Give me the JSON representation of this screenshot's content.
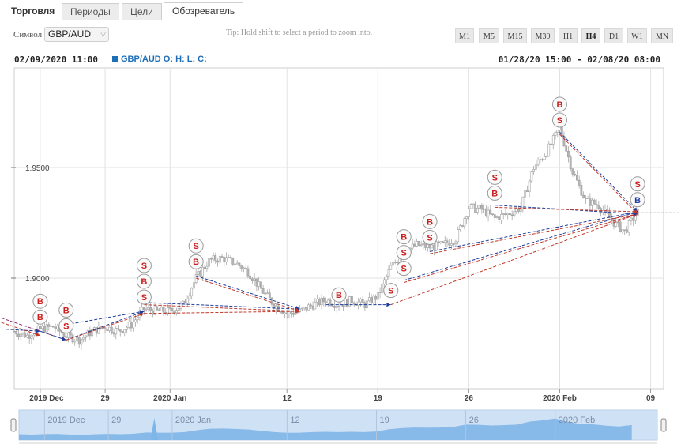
{
  "tabs": [
    {
      "label": "Торговля"
    },
    {
      "label": "Периоды"
    },
    {
      "label": "Цели"
    },
    {
      "label": "Обозреватель",
      "active": true
    }
  ],
  "toolbar": {
    "symbol_label": "Символ",
    "symbol_value": "GBP/AUD",
    "tip": "Tip: Hold shift to select a period to zoom into.",
    "timeframes": [
      "M1",
      "M5",
      "M15",
      "M30",
      "H1",
      "H4",
      "D1",
      "W1",
      "MN"
    ],
    "active_timeframe": "H4"
  },
  "info": {
    "datetime": "02/09/2020 11:00",
    "symbol": "GBP/AUD",
    "ohlc": "O: H: L: C:",
    "range": "01/28/20 15:00 - 02/08/20 08:00"
  },
  "chart_data": {
    "type": "candlestick",
    "y_ticks": [
      "1.9500",
      "1.9000"
    ],
    "y_tick_values": [
      1.95,
      1.9
    ],
    "ylim": [
      1.85,
      1.995
    ],
    "x_tick_labels": [
      "2019 Dec",
      "29",
      "2020 Jan",
      "12",
      "19",
      "26",
      "2020 Feb",
      "09"
    ],
    "x_tick_days": [
      -5,
      0,
      5,
      14,
      21,
      28,
      35,
      42
    ],
    "x_range_days": [
      -7,
      43
    ],
    "x_axis_note": "days relative to 2019-12-29",
    "grid": true,
    "current_price": 1.9295,
    "price_path": [
      [
        -7,
        1.876
      ],
      [
        -6,
        1.874
      ],
      [
        -5,
        1.877
      ],
      [
        -4,
        1.878
      ],
      [
        -3,
        1.874
      ],
      [
        -2,
        1.872
      ],
      [
        -1,
        1.876
      ],
      [
        0,
        1.878
      ],
      [
        1,
        1.876
      ],
      [
        2,
        1.879
      ],
      [
        3,
        1.886
      ],
      [
        4,
        1.885
      ],
      [
        5,
        1.885
      ],
      [
        6,
        1.888
      ],
      [
        7,
        1.9
      ],
      [
        8,
        1.908
      ],
      [
        9,
        1.909
      ],
      [
        10,
        1.907
      ],
      [
        11,
        1.903
      ],
      [
        12,
        1.895
      ],
      [
        13,
        1.888
      ],
      [
        14,
        1.884
      ],
      [
        15,
        1.885
      ],
      [
        16,
        1.888
      ],
      [
        17,
        1.89
      ],
      [
        18,
        1.888
      ],
      [
        19,
        1.89
      ],
      [
        20,
        1.888
      ],
      [
        21,
        1.892
      ],
      [
        22,
        1.905
      ],
      [
        23,
        1.912
      ],
      [
        24,
        1.915
      ],
      [
        25,
        1.914
      ],
      [
        26,
        1.915
      ],
      [
        27,
        1.918
      ],
      [
        28,
        1.932
      ],
      [
        29,
        1.931
      ],
      [
        30,
        1.927
      ],
      [
        31,
        1.929
      ],
      [
        32,
        1.932
      ],
      [
        33,
        1.95
      ],
      [
        34,
        1.957
      ],
      [
        35,
        1.968
      ],
      [
        36,
        1.948
      ],
      [
        37,
        1.935
      ],
      [
        38,
        1.933
      ],
      [
        39,
        1.926
      ],
      [
        40,
        1.921
      ],
      [
        41,
        1.93
      ]
    ],
    "signals": [
      {
        "day": -5,
        "price": 1.876,
        "marks": [
          "B",
          "B"
        ]
      },
      {
        "day": -3,
        "price": 1.872,
        "marks": [
          "B",
          "S"
        ]
      },
      {
        "day": 3,
        "price": 1.885,
        "marks": [
          "S",
          "B",
          "S"
        ]
      },
      {
        "day": 7,
        "price": 1.901,
        "marks": [
          "S",
          "B"
        ]
      },
      {
        "day": 18,
        "price": 1.886,
        "marks": [
          "B"
        ]
      },
      {
        "day": 22,
        "price": 1.888,
        "marks": [
          "S"
        ]
      },
      {
        "day": 23,
        "price": 1.898,
        "marks": [
          "B",
          "S",
          "S"
        ]
      },
      {
        "day": 25,
        "price": 1.912,
        "marks": [
          "B",
          "S"
        ]
      },
      {
        "day": 30,
        "price": 1.932,
        "marks": [
          "S",
          "B"
        ]
      },
      {
        "day": 35,
        "price": 1.965,
        "marks": [
          "B",
          "S"
        ]
      },
      {
        "day": 41,
        "price": 1.929,
        "marks": [
          "S",
          "B"
        ]
      }
    ],
    "trade_lines": [
      {
        "from": [
          -8,
          1.877
        ],
        "to": [
          -5,
          1.876
        ],
        "color": "#1f3d9c"
      },
      {
        "from": [
          -8,
          1.88
        ],
        "to": [
          -5,
          1.874
        ],
        "color": "#c0392b"
      },
      {
        "from": [
          -8,
          1.882
        ],
        "to": [
          -3,
          1.872
        ],
        "color": "#8e2a6a"
      },
      {
        "from": [
          -5,
          1.876
        ],
        "to": [
          -3,
          1.872
        ],
        "color": "#1f3d9c"
      },
      {
        "from": [
          -3,
          1.872
        ],
        "to": [
          3,
          1.885
        ],
        "color": "#1f3d9c"
      },
      {
        "from": [
          -3,
          1.872
        ],
        "to": [
          3,
          1.884
        ],
        "color": "#c0392b"
      },
      {
        "from": [
          -3,
          1.879
        ],
        "to": [
          3,
          1.885
        ],
        "color": "#1f3d9c"
      },
      {
        "from": [
          3,
          1.889
        ],
        "to": [
          15,
          1.886
        ],
        "color": "#1f3d9c"
      },
      {
        "from": [
          3,
          1.888
        ],
        "to": [
          15,
          1.885
        ],
        "color": "#c0392b"
      },
      {
        "from": [
          3,
          1.884
        ],
        "to": [
          15,
          1.885
        ],
        "color": "#c0392b"
      },
      {
        "from": [
          7,
          1.901
        ],
        "to": [
          15,
          1.886
        ],
        "color": "#1f3d9c"
      },
      {
        "from": [
          7,
          1.9
        ],
        "to": [
          15,
          1.885
        ],
        "color": "#c0392b"
      },
      {
        "from": [
          17,
          1.888
        ],
        "to": [
          22,
          1.888
        ],
        "color": "#1f3d9c"
      },
      {
        "from": [
          22,
          1.888
        ],
        "to": [
          41,
          1.929
        ],
        "color": "#c0392b"
      },
      {
        "from": [
          23,
          1.899
        ],
        "to": [
          41,
          1.93
        ],
        "color": "#1f3d9c"
      },
      {
        "from": [
          23,
          1.898
        ],
        "to": [
          41,
          1.929
        ],
        "color": "#c0392b"
      },
      {
        "from": [
          25,
          1.912
        ],
        "to": [
          41,
          1.93
        ],
        "color": "#1f3d9c"
      },
      {
        "from": [
          25,
          1.911
        ],
        "to": [
          41,
          1.929
        ],
        "color": "#c0392b"
      },
      {
        "from": [
          30,
          1.933
        ],
        "to": [
          41,
          1.929
        ],
        "color": "#1f3d9c"
      },
      {
        "from": [
          30,
          1.932
        ],
        "to": [
          41,
          1.93
        ],
        "color": "#c0392b"
      },
      {
        "from": [
          35,
          1.966
        ],
        "to": [
          41,
          1.93
        ],
        "color": "#1f3d9c"
      },
      {
        "from": [
          35,
          1.965
        ],
        "to": [
          41,
          1.929
        ],
        "color": "#c0392b"
      }
    ],
    "navigator_labels": [
      "2019 Dec",
      "29",
      "2020 Jan",
      "12",
      "19",
      "26",
      "2020 Feb"
    ]
  },
  "colors": {
    "signal_buy": "#cc1f1f",
    "signal_sell": "#cc1f1f",
    "signal_last_buy": "#1f3da8",
    "trade_blue": "#1f3d9c",
    "trade_red": "#c0392b",
    "navigator_fill": "#7fb6e8"
  }
}
